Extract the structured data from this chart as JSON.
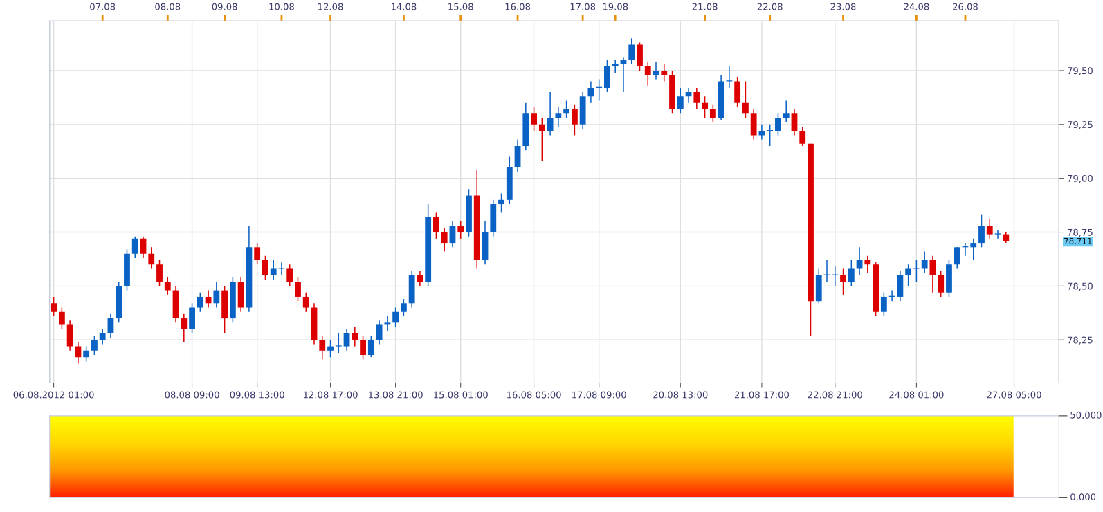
{
  "chart_data": [
    {
      "type": "candlestick",
      "categories": [
        "06.08.2012 01:00",
        null,
        null,
        null,
        null,
        null,
        null,
        null,
        null,
        null,
        null,
        null,
        null,
        null,
        null,
        null,
        null,
        "08.08 09:00",
        null,
        null,
        null,
        null,
        null,
        null,
        null,
        "09.08 13:00",
        null,
        null,
        null,
        null,
        null,
        null,
        null,
        null,
        "12.08 17:00",
        null,
        null,
        null,
        null,
        null,
        null,
        null,
        "13.08 21:00",
        null,
        null,
        null,
        null,
        null,
        null,
        null,
        "15.08 01:00",
        null,
        null,
        null,
        null,
        null,
        null,
        null,
        null,
        "16.08 05:00",
        null,
        null,
        null,
        null,
        null,
        null,
        null,
        "17.08 09:00",
        null,
        null,
        null,
        null,
        null,
        null,
        null,
        null,
        null,
        "20.08 13:00",
        null,
        null,
        null,
        null,
        null,
        null,
        null,
        null,
        null,
        "21.08 17:00",
        null,
        null,
        null,
        null,
        null,
        null,
        null,
        null,
        "22.08 21:00",
        null,
        null,
        null,
        null,
        null,
        null,
        null,
        null,
        null,
        "24.08 01:00",
        null,
        null,
        null,
        null,
        null,
        null,
        null,
        null,
        null,
        null,
        null,
        "27.08 05:00",
        null,
        null,
        null,
        null,
        null
      ],
      "ohlc": [
        [
          78.42,
          78.45,
          78.36,
          78.38
        ],
        [
          78.38,
          78.4,
          78.3,
          78.32
        ],
        [
          78.32,
          78.34,
          78.2,
          78.22
        ],
        [
          78.22,
          78.24,
          78.14,
          78.17
        ],
        [
          78.17,
          78.22,
          78.15,
          78.2
        ],
        [
          78.2,
          78.27,
          78.18,
          78.25
        ],
        [
          78.25,
          78.3,
          78.23,
          78.28
        ],
        [
          78.28,
          78.37,
          78.26,
          78.35
        ],
        [
          78.35,
          78.52,
          78.33,
          78.5
        ],
        [
          78.5,
          78.67,
          78.48,
          78.65
        ],
        [
          78.65,
          78.73,
          78.63,
          78.72
        ],
        [
          78.72,
          78.73,
          78.63,
          78.65
        ],
        [
          78.65,
          78.68,
          78.58,
          78.6
        ],
        [
          78.6,
          78.62,
          78.5,
          78.52
        ],
        [
          78.52,
          78.54,
          78.46,
          78.48
        ],
        [
          78.48,
          78.5,
          78.33,
          78.35
        ],
        [
          78.35,
          78.37,
          78.24,
          78.3
        ],
        [
          78.3,
          78.42,
          78.28,
          78.4
        ],
        [
          78.4,
          78.47,
          78.38,
          78.45
        ],
        [
          78.45,
          78.48,
          78.4,
          78.42
        ],
        [
          78.42,
          78.52,
          78.4,
          78.48
        ],
        [
          78.48,
          78.5,
          78.28,
          78.35
        ],
        [
          78.35,
          78.54,
          78.33,
          78.52
        ],
        [
          78.52,
          78.54,
          78.38,
          78.4
        ],
        [
          78.4,
          78.78,
          78.38,
          78.68
        ],
        [
          78.68,
          78.7,
          78.6,
          78.62
        ],
        [
          78.62,
          78.64,
          78.53,
          78.55
        ],
        [
          78.55,
          78.62,
          78.53,
          78.58
        ],
        [
          78.58,
          78.61,
          78.55,
          78.58
        ],
        [
          78.58,
          78.6,
          78.5,
          78.52
        ],
        [
          78.52,
          78.54,
          78.43,
          78.45
        ],
        [
          78.45,
          78.47,
          78.38,
          78.4
        ],
        [
          78.4,
          78.42,
          78.23,
          78.25
        ],
        [
          78.25,
          78.27,
          78.16,
          78.2
        ],
        [
          78.2,
          78.25,
          78.17,
          78.22
        ],
        [
          78.22,
          78.28,
          78.19,
          78.22
        ],
        [
          78.22,
          78.3,
          78.2,
          78.28
        ],
        [
          78.28,
          78.31,
          78.22,
          78.25
        ],
        [
          78.25,
          78.27,
          78.16,
          78.18
        ],
        [
          78.18,
          78.27,
          78.17,
          78.25
        ],
        [
          78.25,
          78.34,
          78.23,
          78.32
        ],
        [
          78.32,
          78.36,
          78.29,
          78.33
        ],
        [
          78.33,
          78.4,
          78.31,
          78.38
        ],
        [
          78.38,
          78.44,
          78.36,
          78.42
        ],
        [
          78.42,
          78.57,
          78.4,
          78.55
        ],
        [
          78.55,
          78.57,
          78.5,
          78.52
        ],
        [
          78.52,
          78.88,
          78.5,
          78.82
        ],
        [
          78.82,
          78.84,
          78.72,
          78.75
        ],
        [
          78.75,
          78.77,
          78.66,
          78.7
        ],
        [
          78.7,
          78.8,
          78.68,
          78.78
        ],
        [
          78.78,
          78.8,
          78.72,
          78.75
        ],
        [
          78.75,
          78.95,
          78.73,
          78.92
        ],
        [
          78.92,
          79.04,
          78.58,
          78.62
        ],
        [
          78.62,
          78.8,
          78.6,
          78.75
        ],
        [
          78.75,
          78.9,
          78.73,
          78.88
        ],
        [
          78.88,
          78.93,
          78.84,
          78.9
        ],
        [
          78.9,
          79.1,
          78.88,
          79.05
        ],
        [
          79.05,
          79.18,
          79.03,
          79.15
        ],
        [
          79.15,
          79.35,
          79.13,
          79.3
        ],
        [
          79.3,
          79.33,
          79.22,
          79.25
        ],
        [
          79.25,
          79.28,
          79.08,
          79.22
        ],
        [
          79.22,
          79.4,
          79.2,
          79.28
        ],
        [
          79.28,
          79.33,
          79.24,
          79.3
        ],
        [
          79.3,
          79.36,
          79.28,
          79.32
        ],
        [
          79.32,
          79.34,
          79.2,
          79.25
        ],
        [
          79.25,
          79.4,
          79.23,
          79.38
        ],
        [
          79.38,
          79.45,
          79.35,
          79.42
        ],
        [
          79.42,
          79.46,
          79.36,
          79.42
        ],
        [
          79.42,
          79.55,
          79.4,
          79.52
        ],
        [
          79.52,
          79.55,
          79.49,
          79.53
        ],
        [
          79.53,
          79.56,
          79.4,
          79.55
        ],
        [
          79.55,
          79.65,
          79.53,
          79.62
        ],
        [
          79.62,
          79.63,
          79.5,
          79.52
        ],
        [
          79.52,
          79.54,
          79.43,
          79.48
        ],
        [
          79.48,
          79.54,
          79.46,
          79.5
        ],
        [
          79.5,
          79.53,
          79.45,
          79.48
        ],
        [
          79.48,
          79.5,
          79.3,
          79.32
        ],
        [
          79.32,
          79.42,
          79.3,
          79.38
        ],
        [
          79.38,
          79.42,
          79.35,
          79.4
        ],
        [
          79.4,
          79.42,
          79.32,
          79.35
        ],
        [
          79.35,
          79.38,
          79.28,
          79.32
        ],
        [
          79.32,
          79.34,
          79.26,
          79.28
        ],
        [
          79.28,
          79.48,
          79.27,
          79.45
        ],
        [
          79.45,
          79.52,
          79.42,
          79.45
        ],
        [
          79.45,
          79.47,
          79.33,
          79.35
        ],
        [
          79.35,
          79.45,
          79.28,
          79.3
        ],
        [
          79.3,
          79.32,
          79.18,
          79.2
        ],
        [
          79.2,
          79.25,
          79.18,
          79.22
        ],
        [
          79.22,
          79.25,
          79.15,
          79.22
        ],
        [
          79.22,
          79.3,
          79.2,
          79.28
        ],
        [
          79.28,
          79.36,
          79.26,
          79.3
        ],
        [
          79.3,
          79.32,
          79.2,
          79.22
        ],
        [
          79.22,
          79.24,
          79.15,
          79.16
        ],
        [
          79.16,
          79.16,
          78.27,
          78.43
        ],
        [
          78.43,
          78.58,
          78.42,
          78.55
        ],
        [
          78.55,
          78.62,
          78.52,
          78.55
        ],
        [
          78.55,
          78.59,
          78.5,
          78.55
        ],
        [
          78.55,
          78.58,
          78.46,
          78.52
        ],
        [
          78.52,
          78.62,
          78.5,
          78.58
        ],
        [
          78.58,
          78.68,
          78.55,
          78.62
        ],
        [
          78.62,
          78.64,
          78.56,
          78.6
        ],
        [
          78.6,
          78.61,
          78.36,
          78.38
        ],
        [
          78.38,
          78.47,
          78.36,
          78.45
        ],
        [
          78.45,
          78.48,
          78.43,
          78.45
        ],
        [
          78.45,
          78.57,
          78.43,
          78.55
        ],
        [
          78.55,
          78.6,
          78.5,
          78.58
        ],
        [
          78.58,
          78.62,
          78.52,
          78.58
        ],
        [
          78.58,
          78.66,
          78.56,
          78.62
        ],
        [
          78.62,
          78.64,
          78.47,
          78.55
        ],
        [
          78.55,
          78.57,
          78.45,
          78.47
        ],
        [
          78.47,
          78.62,
          78.45,
          78.6
        ],
        [
          78.6,
          78.68,
          78.58,
          78.68
        ],
        [
          78.68,
          78.7,
          78.64,
          78.68
        ],
        [
          78.68,
          78.72,
          78.62,
          78.7
        ],
        [
          78.7,
          78.83,
          78.68,
          78.78
        ],
        [
          78.78,
          78.81,
          78.72,
          78.74
        ],
        [
          78.74,
          78.76,
          78.72,
          78.74
        ],
        [
          78.74,
          78.75,
          78.7,
          78.71
        ],
        null,
        null,
        null,
        null,
        null,
        null
      ],
      "colors": [
        "#dd0000",
        "#dd0000",
        "#dd0000",
        "#dd0000",
        "#0a62c4",
        "#0a62c4",
        "#0a62c4",
        "#0a62c4",
        "#0a62c4",
        "#0a62c4",
        "#0a62c4",
        "#dd0000",
        "#dd0000",
        "#dd0000",
        "#dd0000",
        "#dd0000",
        "#dd0000",
        "#0a62c4",
        "#0a62c4",
        "#dd0000",
        "#0a62c4",
        "#dd0000",
        "#0a62c4",
        "#dd0000",
        "#0a62c4",
        "#dd0000",
        "#dd0000",
        "#0a62c4",
        "#0a62c4",
        "#dd0000",
        "#dd0000",
        "#dd0000",
        "#dd0000",
        "#dd0000",
        "#0a62c4",
        "#0a62c4",
        "#0a62c4",
        "#dd0000",
        "#dd0000",
        "#0a62c4",
        "#0a62c4",
        "#0a62c4",
        "#0a62c4",
        "#0a62c4",
        "#0a62c4",
        "#dd0000",
        "#0a62c4",
        "#dd0000",
        "#dd0000",
        "#0a62c4",
        "#dd0000",
        "#0a62c4",
        "#dd0000",
        "#0a62c4",
        "#0a62c4",
        "#0a62c4",
        "#0a62c4",
        "#0a62c4",
        "#0a62c4",
        "#dd0000",
        "#dd0000",
        "#0a62c4",
        "#0a62c4",
        "#0a62c4",
        "#dd0000",
        "#0a62c4",
        "#0a62c4",
        "#0a62c4",
        "#0a62c4",
        "#0a62c4",
        "#0a62c4",
        "#0a62c4",
        "#dd0000",
        "#dd0000",
        "#0a62c4",
        "#dd0000",
        "#dd0000",
        "#0a62c4",
        "#0a62c4",
        "#dd0000",
        "#dd0000",
        "#dd0000",
        "#0a62c4",
        "#0a62c4",
        "#dd0000",
        "#dd0000",
        "#dd0000",
        "#0a62c4",
        "#0a62c4",
        "#0a62c4",
        "#0a62c4",
        "#dd0000",
        "#dd0000",
        "#dd0000",
        "#0a62c4",
        "#0a62c4",
        "#0a62c4",
        "#dd0000",
        "#0a62c4",
        "#0a62c4",
        "#dd0000",
        "#dd0000",
        "#0a62c4",
        "#0a62c4",
        "#0a62c4",
        "#0a62c4",
        "#0a62c4",
        "#0a62c4",
        "#dd0000",
        "#dd0000",
        "#0a62c4",
        "#0a62c4",
        "#0a62c4",
        "#0a62c4",
        "#0a62c4",
        "#dd0000",
        "#0a62c4",
        "#dd0000",
        null,
        null,
        null,
        null,
        null,
        null
      ],
      "ylim": [
        78.05,
        79.73
      ],
      "yticks": [
        {
          "value": 78.25,
          "label": "78,25"
        },
        {
          "value": 78.5,
          "label": "78,50"
        },
        {
          "value": 78.75,
          "label": "78,75"
        },
        {
          "value": 79.0,
          "label": "79,00"
        },
        {
          "value": 79.25,
          "label": "79,25"
        },
        {
          "value": 79.5,
          "label": "79,50"
        }
      ],
      "grid": true,
      "annotations": [
        "78,711",
        "07.08",
        "08.08",
        "09.08",
        "10.08",
        "12.08",
        "14.08",
        "15.08",
        "16.08",
        "17.08",
        "19.08",
        "21.08",
        "22.08",
        "23.08",
        "24.08",
        "26.08"
      ]
    },
    {
      "type": "other",
      "annotations": [
        "50,000",
        "0,000"
      ]
    }
  ]
}
